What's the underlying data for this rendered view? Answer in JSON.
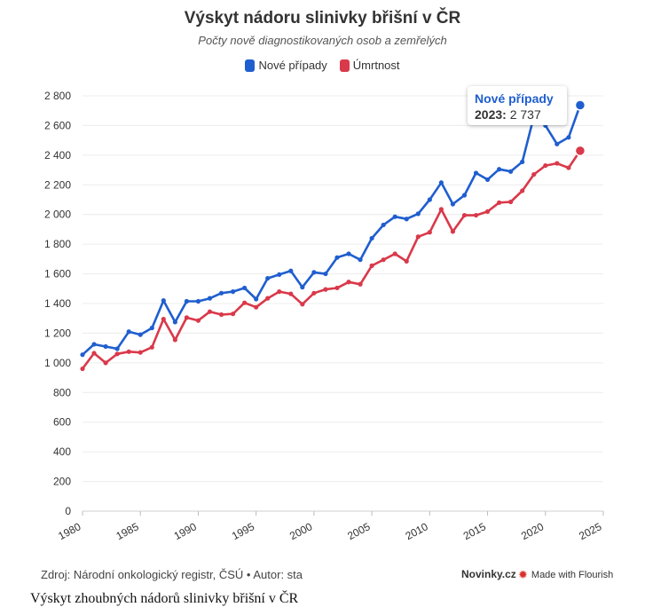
{
  "title": "Výskyt nádoru slinivky břišní v ČR",
  "subtitle": "Počty nově diagnostikovaných osob a zemřelých",
  "legend": [
    {
      "label": "Nové případy",
      "color": "#1f5ecf"
    },
    {
      "label": "Úmrtnost",
      "color": "#d9394a"
    }
  ],
  "tooltip": {
    "series": "Nové případy",
    "year": "2023:",
    "value": "2 737"
  },
  "footer": {
    "source": "Zdroj: Národní onkologický registr, ČSÚ • Autor: sta",
    "brand": "Novinky.cz",
    "made_with": "Made with Flourish",
    "flourish_icon": "flourish-burst-icon"
  },
  "caption": "Výskyt zhoubných nádorů slinivky břišní v ČR",
  "chart_data": {
    "type": "line",
    "title": "Výskyt nádoru slinivky břišní v ČR",
    "subtitle": "Počty nově diagnostikovaných osob a zemřelých",
    "xlabel": "",
    "ylabel": "",
    "xlim": [
      1980,
      2025
    ],
    "ylim": [
      0,
      2800
    ],
    "x_ticks": [
      "1980",
      "1985",
      "1990",
      "1995",
      "2000",
      "2005",
      "2010",
      "2015",
      "2020",
      "2025"
    ],
    "y_ticks": [
      "0",
      "200",
      "400",
      "600",
      "800",
      "1 000",
      "1 200",
      "1 400",
      "1 600",
      "1 800",
      "2 000",
      "2 200",
      "2 400",
      "2 600",
      "2 800"
    ],
    "grid": true,
    "legend_position": "top-center",
    "x": [
      1980,
      1981,
      1982,
      1983,
      1984,
      1985,
      1986,
      1987,
      1988,
      1989,
      1990,
      1991,
      1992,
      1993,
      1994,
      1995,
      1996,
      1997,
      1998,
      1999,
      2000,
      2001,
      2002,
      2003,
      2004,
      2005,
      2006,
      2007,
      2008,
      2009,
      2010,
      2011,
      2012,
      2013,
      2014,
      2015,
      2016,
      2017,
      2018,
      2019,
      2020,
      2021,
      2022,
      2023
    ],
    "series": [
      {
        "name": "Nové případy",
        "color": "#1f5ecf",
        "values": [
          1055,
          1125,
          1110,
          1095,
          1210,
          1190,
          1235,
          1420,
          1275,
          1415,
          1415,
          1435,
          1470,
          1480,
          1505,
          1430,
          1570,
          1595,
          1620,
          1510,
          1610,
          1600,
          1710,
          1735,
          1695,
          1840,
          1930,
          1985,
          1970,
          2005,
          2100,
          2215,
          2070,
          2130,
          2280,
          2235,
          2305,
          2290,
          2355,
          2660,
          2600,
          2475,
          2520,
          2737
        ]
      },
      {
        "name": "Úmrtnost",
        "color": "#d9394a",
        "values": [
          960,
          1065,
          1000,
          1060,
          1075,
          1070,
          1105,
          1295,
          1155,
          1305,
          1285,
          1345,
          1325,
          1330,
          1405,
          1375,
          1435,
          1480,
          1465,
          1395,
          1470,
          1495,
          1505,
          1545,
          1530,
          1655,
          1695,
          1735,
          1685,
          1850,
          1880,
          2035,
          1885,
          1995,
          1995,
          2020,
          2080,
          2085,
          2160,
          2270,
          2330,
          2345,
          2315,
          2430
        ]
      }
    ]
  }
}
